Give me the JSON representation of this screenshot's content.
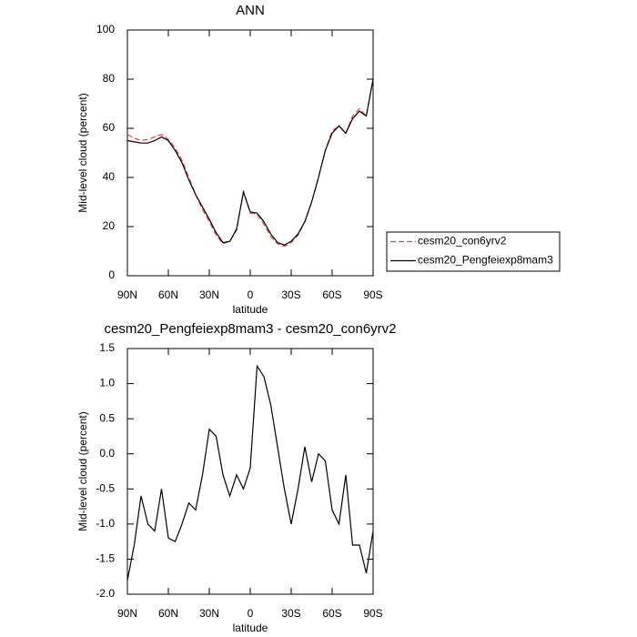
{
  "chart_data": [
    {
      "type": "line",
      "title": "ANN",
      "ylabel": "Mid-level cloud (percent)",
      "xlabel": "latitude",
      "x": [
        90,
        85,
        80,
        75,
        70,
        65,
        60,
        55,
        50,
        45,
        40,
        35,
        30,
        25,
        20,
        15,
        10,
        5,
        0,
        -5,
        -10,
        -15,
        -20,
        -25,
        -30,
        -35,
        -40,
        -45,
        -50,
        -55,
        -60,
        -65,
        -70,
        -75,
        -80,
        -85,
        -90
      ],
      "xlim": [
        90,
        -90
      ],
      "xticks": [
        {
          "value": 90,
          "label": "90N"
        },
        {
          "value": 60,
          "label": "60N"
        },
        {
          "value": 30,
          "label": "30N"
        },
        0,
        {
          "value": -30,
          "label": "30S"
        },
        {
          "value": -60,
          "label": "60S"
        },
        {
          "value": -90,
          "label": "90S"
        }
      ],
      "ylim": [
        0,
        100
      ],
      "yticks": [
        0,
        20,
        40,
        60,
        80,
        100
      ],
      "legend": "right",
      "series": [
        {
          "name": "cesm20_con6yrv2",
          "color": "#e8403a",
          "line_style": "dashed",
          "values": [
            57.5,
            56,
            55,
            55.5,
            56.5,
            57.5,
            55.5,
            52,
            47,
            40,
            33,
            27,
            22,
            16.5,
            13,
            14,
            18.5,
            34.5,
            25.5,
            25,
            21,
            16,
            13,
            12,
            13.5,
            16.5,
            22,
            30,
            40,
            51,
            59,
            61,
            58,
            65,
            68,
            65,
            80
          ]
        },
        {
          "name": "cesm20_Pengfeiexp8mam3",
          "color": "#000000",
          "line_style": "solid",
          "values": [
            55,
            54.5,
            54,
            54,
            55,
            56.5,
            55,
            51,
            46,
            39,
            33,
            28,
            23,
            17.5,
            13.5,
            14,
            19,
            34,
            26,
            25.5,
            22,
            17,
            13.5,
            12.5,
            14,
            17,
            22,
            30,
            40,
            51,
            58,
            61,
            58,
            64,
            67,
            65,
            80
          ]
        }
      ]
    },
    {
      "type": "line",
      "title": "cesm20_Pengfeiexp8mam3 - cesm20_con6yrv2",
      "ylabel": "Mid-level cloud (percent)",
      "xlabel": "latitude",
      "x": [
        90,
        85,
        80,
        75,
        70,
        65,
        60,
        55,
        50,
        45,
        40,
        35,
        30,
        25,
        20,
        15,
        10,
        5,
        0,
        -5,
        -10,
        -15,
        -20,
        -25,
        -30,
        -35,
        -40,
        -45,
        -50,
        -55,
        -60,
        -65,
        -70,
        -75,
        -80,
        -85,
        -90
      ],
      "xlim": [
        90,
        -90
      ],
      "xticks": [
        {
          "value": 90,
          "label": "90N"
        },
        {
          "value": 60,
          "label": "60N"
        },
        {
          "value": 30,
          "label": "30N"
        },
        0,
        {
          "value": -30,
          "label": "30S"
        },
        {
          "value": -60,
          "label": "60S"
        },
        {
          "value": -90,
          "label": "90S"
        }
      ],
      "ylim": [
        -2,
        1.5
      ],
      "yticks": [
        {
          "value": -2,
          "label": "-2.0"
        },
        -1.5,
        {
          "value": -1,
          "label": "-1.0"
        },
        -0.5,
        {
          "value": 0,
          "label": "0.0"
        },
        0.5,
        {
          "value": 1,
          "label": "1.0"
        },
        1.5
      ],
      "series": [
        {
          "color": "#000000",
          "line_style": "solid",
          "values": [
            -1.8,
            -1.3,
            -0.6,
            -1.0,
            -1.1,
            -0.5,
            -1.2,
            -1.25,
            -1.0,
            -0.7,
            -0.8,
            -0.3,
            0.35,
            0.25,
            -0.3,
            -0.6,
            -0.3,
            -0.5,
            -0.2,
            1.25,
            1.1,
            0.7,
            0.1,
            -0.5,
            -1.0,
            -0.5,
            0.1,
            -0.4,
            0.0,
            -0.1,
            -0.8,
            -1.0,
            -0.3,
            -1.3,
            -1.3,
            -1.7,
            -1.1
          ]
        }
      ]
    }
  ]
}
